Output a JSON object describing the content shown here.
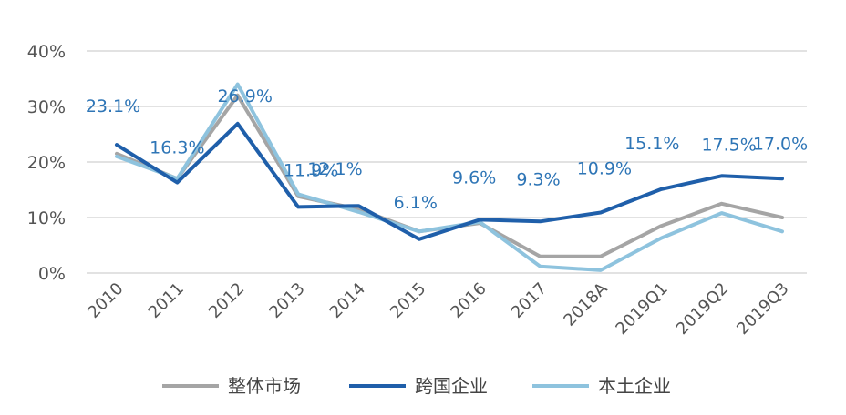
{
  "chart_data": {
    "type": "line",
    "categories": [
      "2010",
      "2011",
      "2012",
      "2013",
      "2014",
      "2015",
      "2016",
      "2017",
      "2018A",
      "2019Q1",
      "2019Q2",
      "2019Q3"
    ],
    "ylim": [
      0,
      40
    ],
    "yticks": [
      "0%",
      "10%",
      "20%",
      "30%",
      "40%"
    ],
    "ytick_values": [
      0,
      10,
      20,
      30,
      40
    ],
    "grid": true,
    "legend_position": "bottom",
    "series": [
      {
        "name": "整体市场",
        "color": "#A5A5A5",
        "values": [
          21.5,
          17.0,
          32.0,
          13.8,
          11.5,
          7.5,
          9.0,
          3.0,
          3.0,
          8.5,
          12.5,
          10.0
        ]
      },
      {
        "name": "跨国企业",
        "color": "#1F5FAA",
        "values": [
          23.1,
          16.3,
          26.9,
          11.9,
          12.1,
          6.1,
          9.6,
          9.3,
          10.9,
          15.1,
          17.5,
          17.0
        ]
      },
      {
        "name": "本土企业",
        "color": "#8EC3DE",
        "values": [
          21.0,
          17.0,
          34.0,
          14.2,
          11.0,
          7.5,
          9.2,
          1.2,
          0.5,
          6.3,
          10.8,
          7.5
        ]
      }
    ],
    "data_labels": [
      "23.1%",
      "16.3%",
      "26.9%",
      "11.9%",
      "12.1%",
      "6.1%",
      "9.6%",
      "9.3%",
      "10.9%",
      "15.1%",
      "17.5%",
      "17.0%"
    ]
  }
}
